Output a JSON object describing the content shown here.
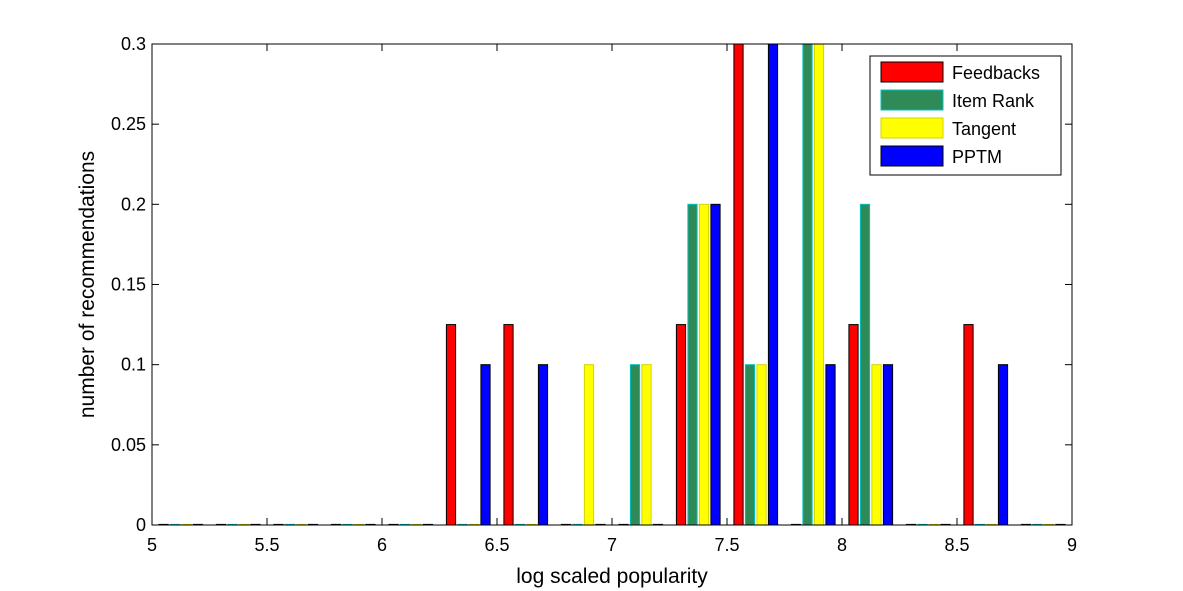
{
  "chart_data": {
    "type": "bar",
    "title": "",
    "xlabel": "log scaled popularity",
    "ylabel": "number of recommendations",
    "xlim": [
      5,
      9
    ],
    "ylim": [
      0,
      0.3
    ],
    "x_ticks": [
      "5",
      "5.5",
      "6",
      "6.5",
      "7",
      "7.5",
      "8",
      "8.5",
      "9"
    ],
    "y_ticks": [
      "0",
      "0.05",
      "0.1",
      "0.15",
      "0.2",
      "0.25",
      "0.3"
    ],
    "grid": false,
    "legend_position": "top-right",
    "x": [
      5.125,
      5.375,
      5.625,
      5.875,
      6.125,
      6.375,
      6.625,
      6.875,
      7.125,
      7.375,
      7.625,
      7.875,
      8.125,
      8.375,
      8.625,
      8.875
    ],
    "series": [
      {
        "name": "Feedbacks",
        "color": "#ff0000",
        "values": [
          0,
          0,
          0,
          0,
          0,
          0.125,
          0.125,
          0,
          0,
          0.125,
          0.3,
          0,
          0.125,
          0,
          0.125,
          0
        ]
      },
      {
        "name": "Item Rank",
        "color": "#2e8b57",
        "edge": "#00bfbf",
        "values": [
          0,
          0,
          0,
          0,
          0,
          0,
          0,
          0,
          0.1,
          0.2,
          0.1,
          0.3,
          0.2,
          0,
          0,
          0
        ]
      },
      {
        "name": "Tangent",
        "color": "#ffff00",
        "edge": "#d4d400",
        "values": [
          0,
          0,
          0,
          0,
          0,
          0,
          0,
          0.1,
          0.1,
          0.2,
          0.1,
          0.3,
          0.1,
          0,
          0,
          0
        ]
      },
      {
        "name": "PPTM",
        "color": "#0000ff",
        "values": [
          0,
          0,
          0,
          0,
          0,
          0.1,
          0.1,
          0,
          0,
          0.2,
          0.3,
          0.1,
          0.1,
          0,
          0.1,
          0
        ]
      }
    ]
  }
}
